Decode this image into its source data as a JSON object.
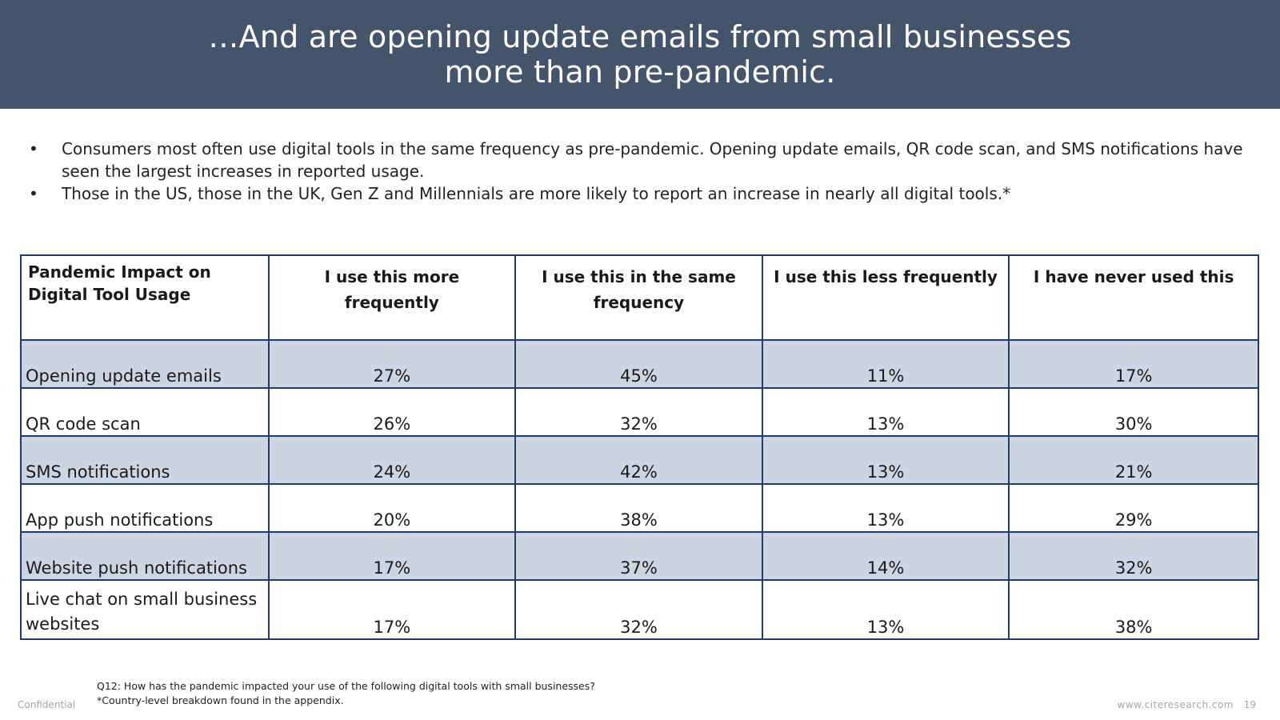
{
  "title": {
    "line1": "…And are opening update emails from small businesses",
    "line2": "more than pre-pandemic."
  },
  "bullets": [
    {
      "marker": "•",
      "text": "Consumers most often use digital tools in the same frequency as pre-pandemic.  Opening update emails, QR code scan, and SMS notifications have seen the largest increases in reported usage."
    },
    {
      "marker": "•",
      "text": "Those in the US, those in the UK, Gen Z and Millennials are more likely to report an increase in nearly all digital tools.*"
    }
  ],
  "table": {
    "headers": [
      "Pandemic Impact on Digital Tool Usage",
      "I use this more frequently",
      "I use this in the same frequency",
      "I use this less frequently",
      "I have never used this"
    ],
    "rows": [
      {
        "label": "Opening update emails",
        "values": [
          "27%",
          "45%",
          "11%",
          "17%"
        ]
      },
      {
        "label": "QR code scan",
        "values": [
          "26%",
          "32%",
          "13%",
          "30%"
        ]
      },
      {
        "label": "SMS notifications",
        "values": [
          "24%",
          "42%",
          "13%",
          "21%"
        ]
      },
      {
        "label": "App push notifications",
        "values": [
          "20%",
          "38%",
          "13%",
          "29%"
        ]
      },
      {
        "label": "Website push notifications",
        "values": [
          "17%",
          "37%",
          "14%",
          "32%"
        ]
      },
      {
        "label": "Live chat on small business websites",
        "values": [
          "17%",
          "32%",
          "13%",
          "38%"
        ]
      }
    ]
  },
  "footnote": {
    "line1": "Q12: How has the pandemic impacted your use of the following digital tools with small businesses?",
    "line2": "*Country-level breakdown found in the appendix."
  },
  "footer": {
    "confidential": "Confidential",
    "site": "www.citeresearch.com",
    "page": "19"
  },
  "colors": {
    "header_bg": "#44546a",
    "row_shade": "#cdd5e3",
    "table_border": "#1f3b6e"
  }
}
